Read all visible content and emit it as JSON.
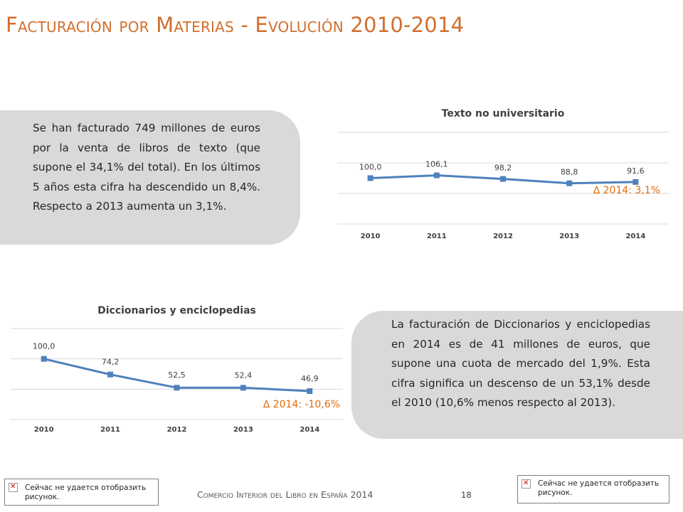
{
  "slide": {
    "title": "Facturación por Materias - Evolución 2010-2014",
    "footer": "Comercio Interior del Libro en España 2014",
    "page_number": "18",
    "broken_image_text": "Сейчас не удается отобразить рисунок."
  },
  "text_blocks": {
    "texto": "Se han facturado 749 millones de euros por la venta de libros de texto (que supone el 34,1% del total). En los últimos 5 años esta cifra ha descendido un 8,4%. Respecto a 2013 aumenta un 3,1%.",
    "diccionarios": "La facturación de Diccionarios y enciclopedias en 2014 es de 41 millones de euros, que supone una cuota de mercado del 1,9%. Esta cifra significa un descenso de un 53,1% desde el 2010 (10,6% menos respecto al 2013)."
  },
  "chart_data": [
    {
      "type": "line",
      "title": "Texto no universitario",
      "x": [
        "2010",
        "2011",
        "2012",
        "2013",
        "2014"
      ],
      "values": [
        100.0,
        106.1,
        98.2,
        88.8,
        91.6
      ],
      "labels": [
        "100,0",
        "106,1",
        "98,2",
        "88,8",
        "91,6"
      ],
      "ylim": [
        0,
        200
      ],
      "grid": true,
      "legend": "none",
      "annotation": "∆ 2014: 3,1%",
      "line_color": "#4f81bd",
      "annotation_color": "#e36c09"
    },
    {
      "type": "line",
      "title": "Diccionarios y enciclopedias",
      "x": [
        "2010",
        "2011",
        "2012",
        "2013",
        "2014"
      ],
      "values": [
        100.0,
        74.2,
        52.5,
        52.4,
        46.9
      ],
      "labels": [
        "100,0",
        "74,2",
        "52,5",
        "52,4",
        "46,9"
      ],
      "ylim": [
        0,
        150
      ],
      "grid": true,
      "legend": "none",
      "annotation": "∆ 2014: -10,6%",
      "line_color": "#4f81bd",
      "annotation_color": "#e36c09"
    }
  ]
}
